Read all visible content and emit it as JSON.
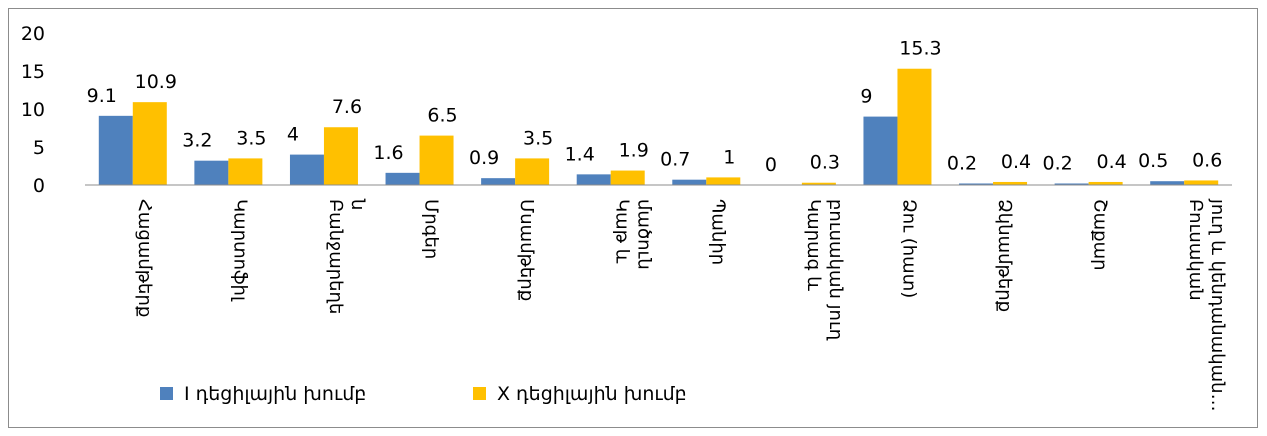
{
  "chart_data": {
    "type": "bar",
    "title": "",
    "xlabel": "",
    "ylabel": "",
    "ylim": [
      0,
      20
    ],
    "yticks": [
      "0",
      "5",
      "10",
      "15",
      "20"
    ],
    "grid": false,
    "legend_position": "bottom-left",
    "categories": [
      [
        "Հացամթերք"
      ],
      [
        "Կարտոֆիլ"
      ],
      [
        "Բանջարեղե",
        "ն"
      ],
      [
        "Մրգեր"
      ],
      [
        "Մսամթերք"
      ],
      [
        "Կաթ և",
        "մածուն"
      ],
      [
        "Պանիր"
      ],
      [
        "Կարագ և",
        "բուսական յուղ"
      ],
      [
        "Ձու (հատ)"
      ],
      [
        "Ձկնամթերք"
      ],
      [
        "Շաքար"
      ],
      [
        "Բուսական",
        "յուղ և կենդանական…"
      ]
    ],
    "series": [
      {
        "name": "I դեցիլային խումբ",
        "color": "#4f81bd",
        "values": [
          9.1,
          3.2,
          4,
          1.6,
          0.9,
          1.4,
          0.7,
          0,
          9,
          0.2,
          0.2,
          0.5
        ],
        "labels": [
          "9.1",
          "3.2",
          "4",
          "1.6",
          "0.9",
          "1.4",
          "0.7",
          "0",
          "9",
          "0.2",
          "0.2",
          "0.5"
        ]
      },
      {
        "name": "X դեցիլային խումբ",
        "color": "#ffc000",
        "values": [
          10.9,
          3.5,
          7.6,
          6.5,
          3.5,
          1.9,
          1,
          0.3,
          15.3,
          0.4,
          0.4,
          0.6
        ],
        "labels": [
          "10.9",
          "3.5",
          "7.6",
          "6.5",
          "3.5",
          "1.9",
          "1",
          "0.3",
          "15.3",
          "0.4",
          "0.4",
          "0.6"
        ]
      }
    ]
  }
}
